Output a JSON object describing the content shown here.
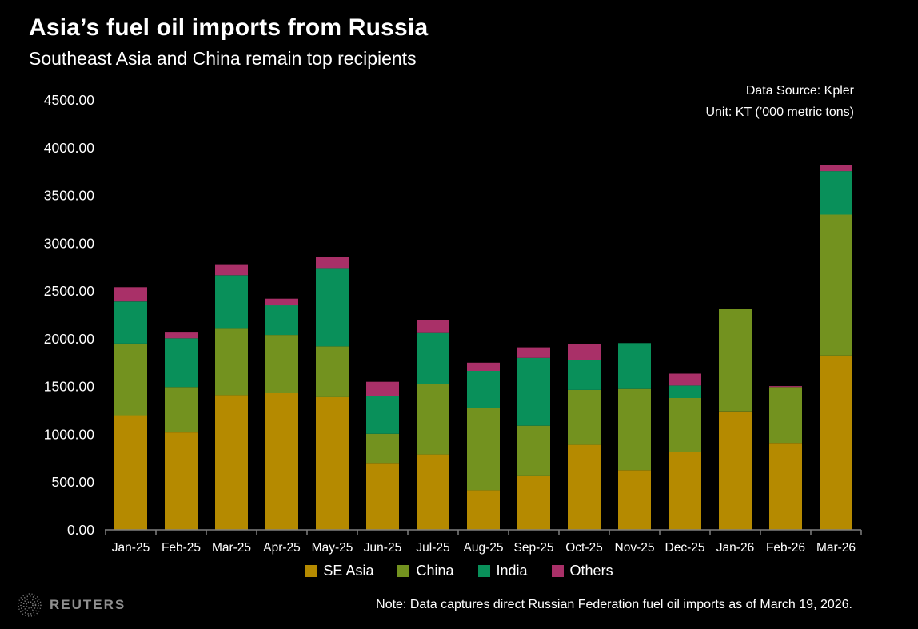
{
  "header": {
    "title": "Asia’s fuel oil imports from Russia",
    "subtitle": "Southeast Asia and China remain top recipients",
    "source_line1": "Data Source: Kpler",
    "source_line2": "Unit: KT (’000 metric tons)"
  },
  "footer": {
    "note": "Note: Data captures direct Russian Federation fuel oil imports as of March 19, 2026.",
    "brand": "REUTERS",
    "brand_icon": "reuters-globe-icon",
    "brand_color": "#8f8f8f"
  },
  "chart_data": {
    "type": "bar",
    "stacked": true,
    "title": "Asia’s fuel oil imports from Russia",
    "subtitle": "Southeast Asia and China remain top recipients",
    "xlabel": "",
    "ylabel": "KT ('000 metric tons)",
    "ylim": [
      0,
      4500
    ],
    "ytick_step": 500,
    "ytick_format": "0.00",
    "grid": false,
    "legend_position": "bottom",
    "background": "#000000",
    "text_color": "#ffffff",
    "axis_color": "#7f7f7f",
    "categories": [
      "Jan-25",
      "Feb-25",
      "Mar-25",
      "Apr-25",
      "May-25",
      "Jun-25",
      "Jul-25",
      "Aug-25",
      "Sep-25",
      "Oct-25",
      "Nov-25",
      "Dec-25",
      "Jan-26",
      "Feb-26",
      "Mar-26"
    ],
    "series": [
      {
        "name": "SE Asia",
        "color": "#B58A00",
        "values": [
          1200,
          1020,
          1410,
          1430,
          1390,
          700,
          790,
          415,
          570,
          890,
          625,
          815,
          1240,
          910,
          1825
        ]
      },
      {
        "name": "China",
        "color": "#73921F",
        "values": [
          750,
          475,
          695,
          610,
          530,
          305,
          740,
          860,
          520,
          575,
          850,
          565,
          1070,
          585,
          1475
        ]
      },
      {
        "name": "India",
        "color": "#09905A",
        "values": [
          440,
          510,
          560,
          310,
          820,
          400,
          530,
          390,
          710,
          310,
          480,
          130,
          0,
          0,
          455
        ]
      },
      {
        "name": "Others",
        "color": "#A93068",
        "values": [
          150,
          60,
          115,
          70,
          120,
          145,
          135,
          85,
          110,
          170,
          0,
          125,
          0,
          10,
          60
        ]
      }
    ]
  }
}
